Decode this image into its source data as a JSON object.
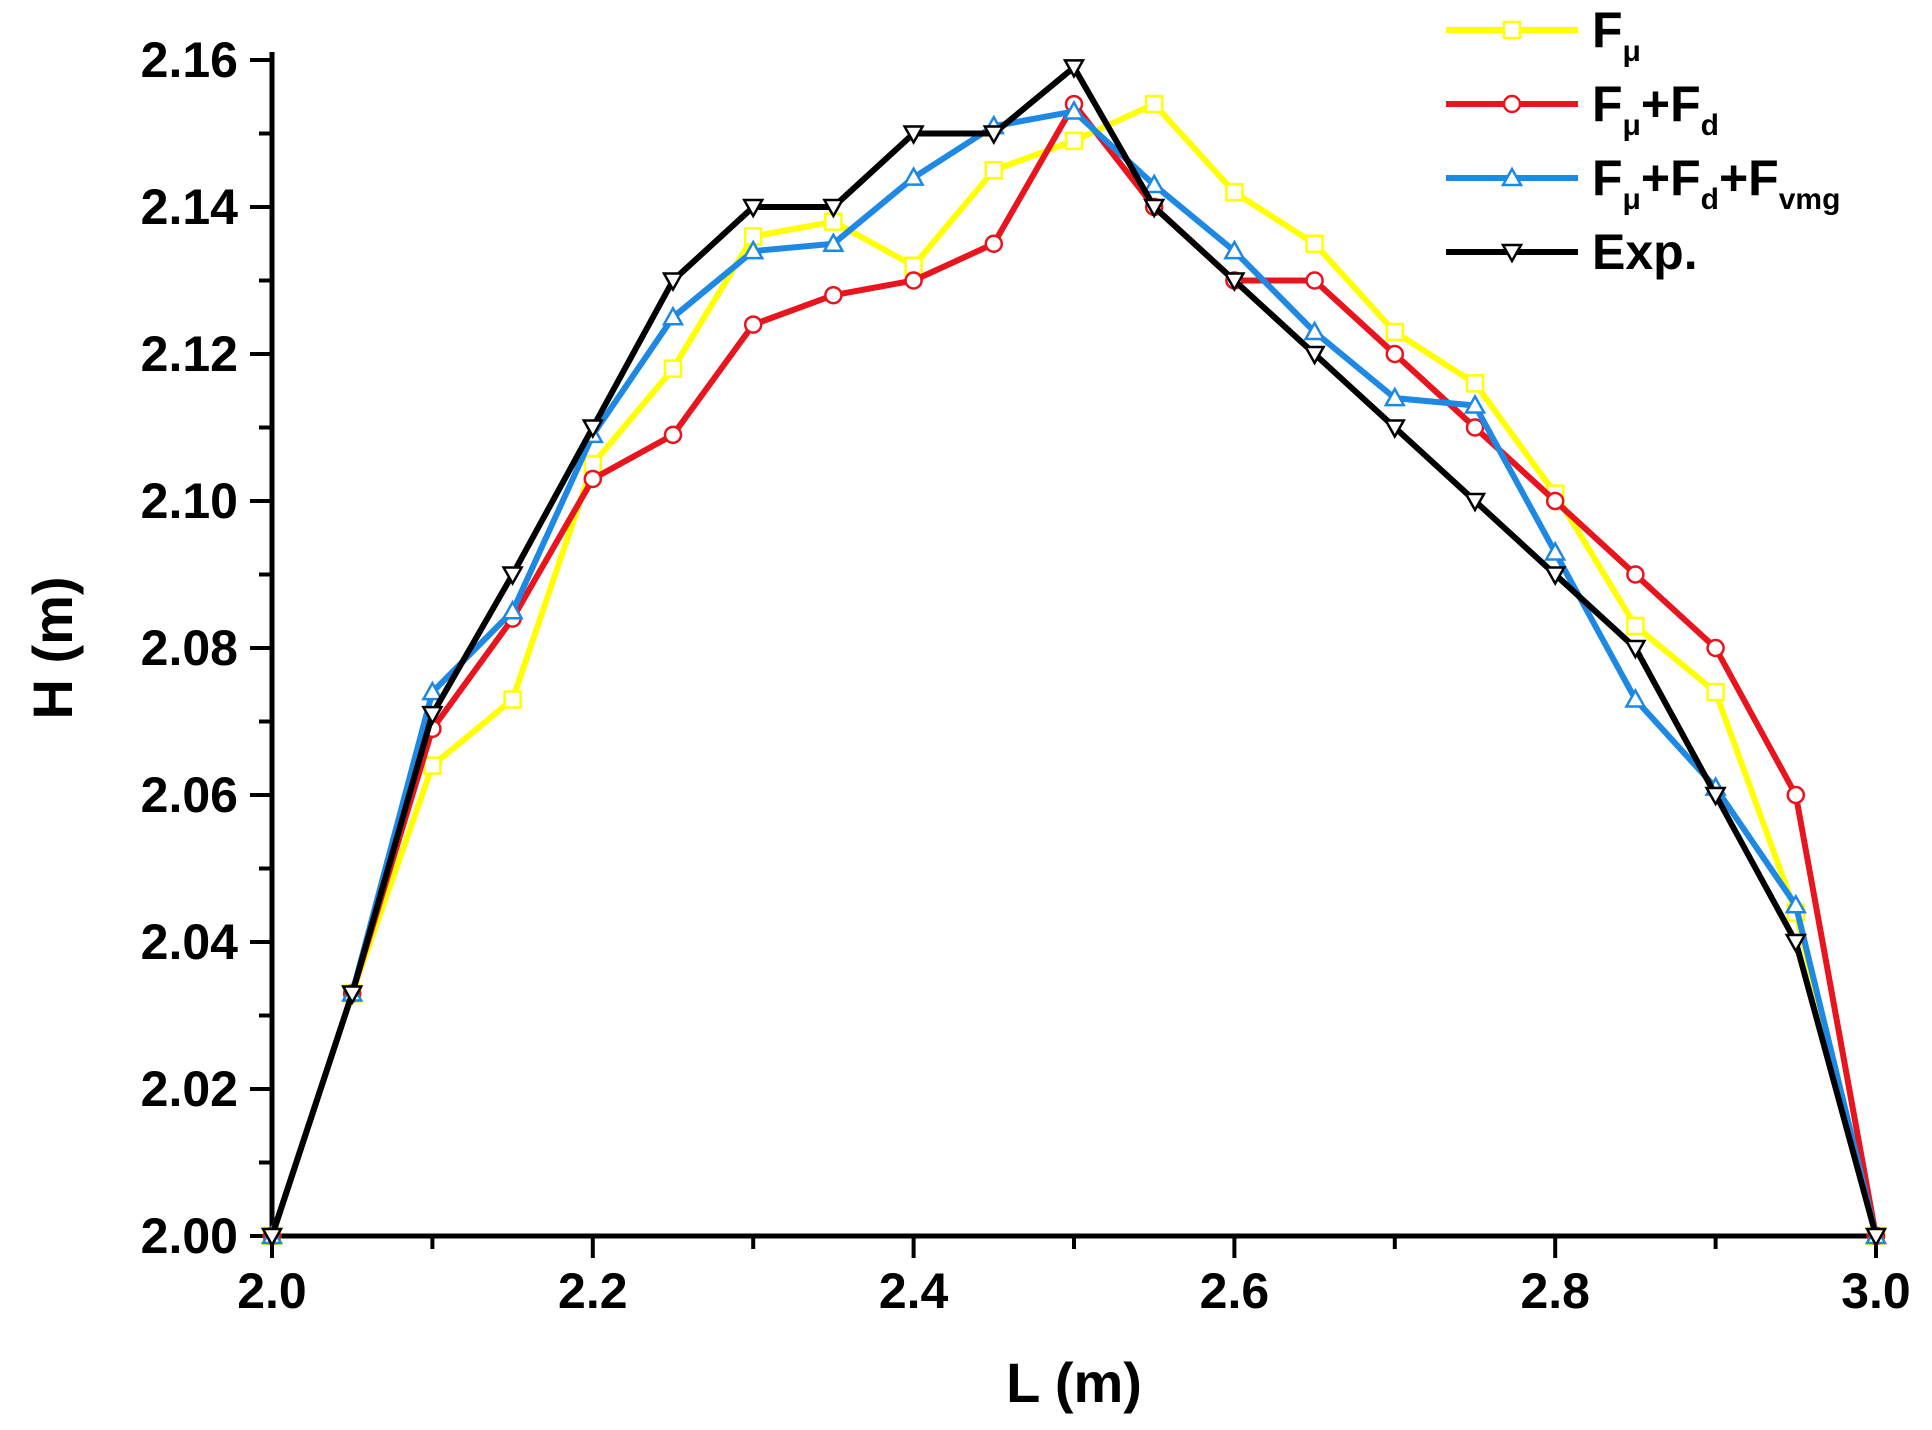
{
  "chart_data": {
    "type": "line",
    "title": "",
    "xlabel": "L (m)",
    "ylabel": "H (m)",
    "xlim": [
      2.0,
      3.0
    ],
    "ylim": [
      2.0,
      2.16
    ],
    "x_ticks": [
      2.0,
      2.2,
      2.4,
      2.6,
      2.8,
      3.0
    ],
    "x_tick_labels": [
      "2.0",
      "2.2",
      "2.4",
      "2.6",
      "2.8",
      "3.0"
    ],
    "y_ticks": [
      2.0,
      2.02,
      2.04,
      2.06,
      2.08,
      2.1,
      2.12,
      2.14,
      2.16
    ],
    "y_tick_labels": [
      "2.00",
      "2.02",
      "2.04",
      "2.06",
      "2.08",
      "2.10",
      "2.12",
      "2.14",
      "2.16"
    ],
    "grid": false,
    "legend_position": "top-right",
    "x": [
      2.0,
      2.05,
      2.1,
      2.15,
      2.2,
      2.25,
      2.3,
      2.35,
      2.4,
      2.45,
      2.5,
      2.55,
      2.6,
      2.65,
      2.7,
      2.75,
      2.8,
      2.85,
      2.9,
      2.95,
      3.0
    ],
    "series": [
      {
        "name": "Fμ",
        "legend_main": "F",
        "legend_subs": [
          "μ"
        ],
        "legend_joiners": [],
        "color": "#ffff00",
        "marker": "square",
        "values": [
          2.0,
          2.033,
          2.064,
          2.073,
          2.105,
          2.118,
          2.136,
          2.138,
          2.132,
          2.145,
          2.149,
          2.154,
          2.142,
          2.135,
          2.123,
          2.116,
          2.101,
          2.083,
          2.074,
          2.044,
          2.0
        ]
      },
      {
        "name": "Fμ+Fd",
        "legend_main": "F",
        "legend_subs": [
          "μ",
          "d"
        ],
        "legend_joiners": [
          "+F"
        ],
        "color": "#e8141e",
        "marker": "circle",
        "values": [
          2.0,
          2.033,
          2.069,
          2.084,
          2.103,
          2.109,
          2.124,
          2.128,
          2.13,
          2.135,
          2.154,
          2.14,
          2.13,
          2.13,
          2.12,
          2.11,
          2.1,
          2.09,
          2.08,
          2.06,
          2.0
        ]
      },
      {
        "name": "Fμ+Fd+Fvmg",
        "legend_main": "F",
        "legend_subs": [
          "μ",
          "d",
          "vmg"
        ],
        "legend_joiners": [
          "+F",
          "+F"
        ],
        "color": "#1e88e5",
        "marker": "triangle-up",
        "values": [
          2.0,
          2.033,
          2.074,
          2.085,
          2.109,
          2.125,
          2.134,
          2.135,
          2.144,
          2.151,
          2.153,
          2.143,
          2.134,
          2.123,
          2.114,
          2.113,
          2.093,
          2.073,
          2.061,
          2.045,
          2.0
        ]
      },
      {
        "name": "Exp.",
        "legend_main": "Exp.",
        "legend_subs": [],
        "legend_joiners": [],
        "color": "#000000",
        "marker": "triangle-down",
        "values": [
          2.0,
          2.033,
          2.071,
          2.09,
          2.11,
          2.13,
          2.14,
          2.14,
          2.15,
          2.15,
          2.159,
          2.14,
          2.13,
          2.12,
          2.11,
          2.1,
          2.09,
          2.08,
          2.06,
          2.04,
          2.0
        ]
      }
    ]
  }
}
